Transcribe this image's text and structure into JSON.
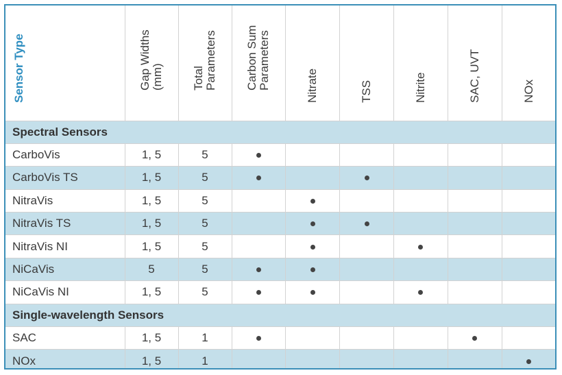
{
  "table": {
    "header": {
      "title": "Sensor Type",
      "columns": [
        "Gap Widths\n(mm)",
        "Total\nParameters",
        "Carbon Sum\nParameters",
        "Nitrate",
        "TSS",
        "Nitrite",
        "SAC, UVT",
        "NOx"
      ]
    },
    "sections": [
      {
        "title": "Spectral Sensors",
        "rows": [
          {
            "name": "CarboVis",
            "gap": "1, 5",
            "total": "5",
            "flags": [
              1,
              0,
              0,
              0,
              0,
              0
            ],
            "shaded": false
          },
          {
            "name": "CarboVis TS",
            "gap": "1, 5",
            "total": "5",
            "flags": [
              1,
              0,
              1,
              0,
              0,
              0
            ],
            "shaded": true
          },
          {
            "name": "NitraVis",
            "gap": "1, 5",
            "total": "5",
            "flags": [
              0,
              1,
              0,
              0,
              0,
              0
            ],
            "shaded": false
          },
          {
            "name": "NitraVis TS",
            "gap": "1, 5",
            "total": "5",
            "flags": [
              0,
              1,
              1,
              0,
              0,
              0
            ],
            "shaded": true
          },
          {
            "name": "NitraVis NI",
            "gap": "1, 5",
            "total": "5",
            "flags": [
              0,
              1,
              0,
              1,
              0,
              0
            ],
            "shaded": false
          },
          {
            "name": "NiCaVis",
            "gap": "5",
            "total": "5",
            "flags": [
              1,
              1,
              0,
              0,
              0,
              0
            ],
            "shaded": true
          },
          {
            "name": "NiCaVis NI",
            "gap": "1, 5",
            "total": "5",
            "flags": [
              1,
              1,
              0,
              1,
              0,
              0
            ],
            "shaded": false
          }
        ]
      },
      {
        "title": "Single-wavelength Sensors",
        "rows": [
          {
            "name": "SAC",
            "gap": "1, 5",
            "total": "1",
            "flags": [
              1,
              0,
              0,
              0,
              1,
              0
            ],
            "shaded": false
          },
          {
            "name": "NOx",
            "gap": "1, 5",
            "total": "1",
            "flags": [
              0,
              0,
              0,
              0,
              0,
              1
            ],
            "shaded": true
          }
        ]
      }
    ]
  }
}
